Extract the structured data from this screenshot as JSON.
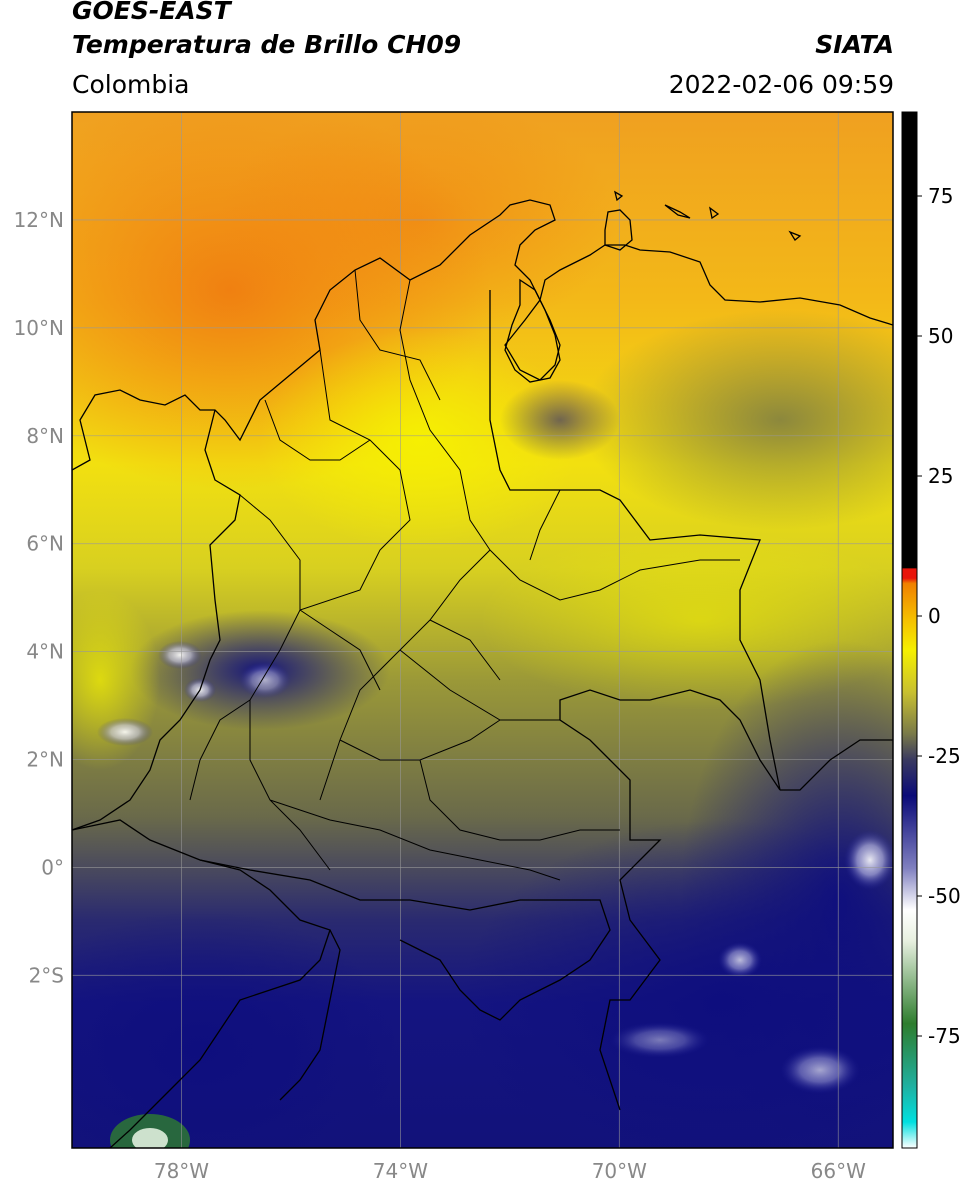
{
  "header": {
    "satellite": "GOES-EAST",
    "product": "Temperatura de Brillo CH09",
    "region": "Colombia",
    "organization": "SIATA",
    "datetime": "2022-02-06 09:59"
  },
  "map": {
    "lon_range": [
      -80,
      -65
    ],
    "lat_range": [
      -5.2,
      14
    ],
    "lat_ticks": [
      {
        "value": 12,
        "label": "12°N"
      },
      {
        "value": 10,
        "label": "10°N"
      },
      {
        "value": 8,
        "label": "8°N"
      },
      {
        "value": 6,
        "label": "6°N"
      },
      {
        "value": 4,
        "label": "4°N"
      },
      {
        "value": 2,
        "label": "2°N"
      },
      {
        "value": 0,
        "label": "0°"
      },
      {
        "value": -2,
        "label": "2°S"
      }
    ],
    "lon_ticks": [
      {
        "value": -78,
        "label": "78°W"
      },
      {
        "value": -74,
        "label": "74°W"
      },
      {
        "value": -70,
        "label": "70°W"
      },
      {
        "value": -66,
        "label": "66°W"
      }
    ],
    "grid": true
  },
  "colorbar": {
    "range": [
      -95,
      90
    ],
    "ticks": [
      {
        "value": 75,
        "label": "75"
      },
      {
        "value": 50,
        "label": "50"
      },
      {
        "value": 25,
        "label": "25"
      },
      {
        "value": 0,
        "label": "0"
      },
      {
        "value": -25,
        "label": "-25"
      },
      {
        "value": -50,
        "label": "-50"
      },
      {
        "value": -75,
        "label": "-75"
      }
    ],
    "colors": {
      "black": "#000000",
      "red": "#e8140a",
      "orange": "#f5a000",
      "yellow": "#f5f000",
      "olive": "#8a8a40",
      "gray": "#555560",
      "navy": "#0a0a78",
      "white": "#ffffff",
      "green": "#2e7d2e",
      "cyan": "#00e0e0"
    }
  }
}
